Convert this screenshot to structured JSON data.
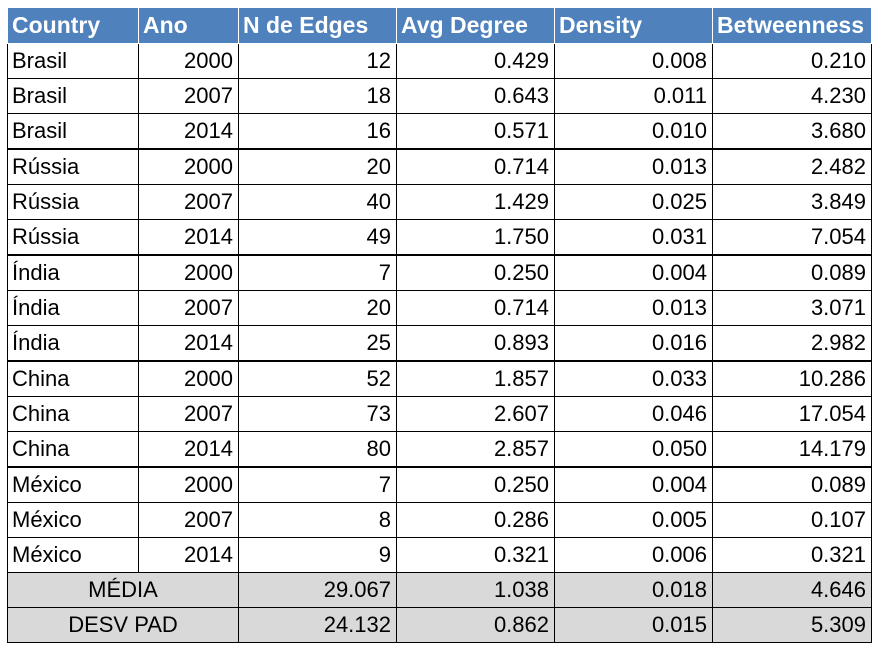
{
  "headers": [
    "Country",
    "Ano",
    "N de Edges",
    "Avg Degree",
    "Density",
    "Betweenness"
  ],
  "rows": [
    [
      "Brasil",
      "2000",
      "12",
      "0.429",
      "0.008",
      "0.210"
    ],
    [
      "Brasil",
      "2007",
      "18",
      "0.643",
      "0.011",
      "4.230"
    ],
    [
      "Brasil",
      "2014",
      "16",
      "0.571",
      "0.010",
      "3.680"
    ],
    [
      "Rússia",
      "2000",
      "20",
      "0.714",
      "0.013",
      "2.482"
    ],
    [
      "Rússia",
      "2007",
      "40",
      "1.429",
      "0.025",
      "3.849"
    ],
    [
      "Rússia",
      "2014",
      "49",
      "1.750",
      "0.031",
      "7.054"
    ],
    [
      "Índia",
      "2000",
      "7",
      "0.250",
      "0.004",
      "0.089"
    ],
    [
      "Índia",
      "2007",
      "20",
      "0.714",
      "0.013",
      "3.071"
    ],
    [
      "Índia",
      "2014",
      "25",
      "0.893",
      "0.016",
      "2.982"
    ],
    [
      "China",
      "2000",
      "52",
      "1.857",
      "0.033",
      "10.286"
    ],
    [
      "China",
      "2007",
      "73",
      "2.607",
      "0.046",
      "17.054"
    ],
    [
      "China",
      "2014",
      "80",
      "2.857",
      "0.050",
      "14.179"
    ],
    [
      "México",
      "2000",
      "7",
      "0.250",
      "0.004",
      "0.089"
    ],
    [
      "México",
      "2007",
      "8",
      "0.286",
      "0.005",
      "0.107"
    ],
    [
      "México",
      "2014",
      "9",
      "0.321",
      "0.006",
      "0.321"
    ]
  ],
  "summary": [
    {
      "label": "MÉDIA",
      "values": [
        "29.067",
        "1.038",
        "0.018",
        "4.646"
      ]
    },
    {
      "label": "DESV PAD",
      "values": [
        "24.132",
        "0.862",
        "0.015",
        "5.309"
      ]
    }
  ],
  "colors": {
    "header_bg": "#4f81bd",
    "header_text": "#ffffff",
    "summary_bg": "#d9d9d9"
  }
}
